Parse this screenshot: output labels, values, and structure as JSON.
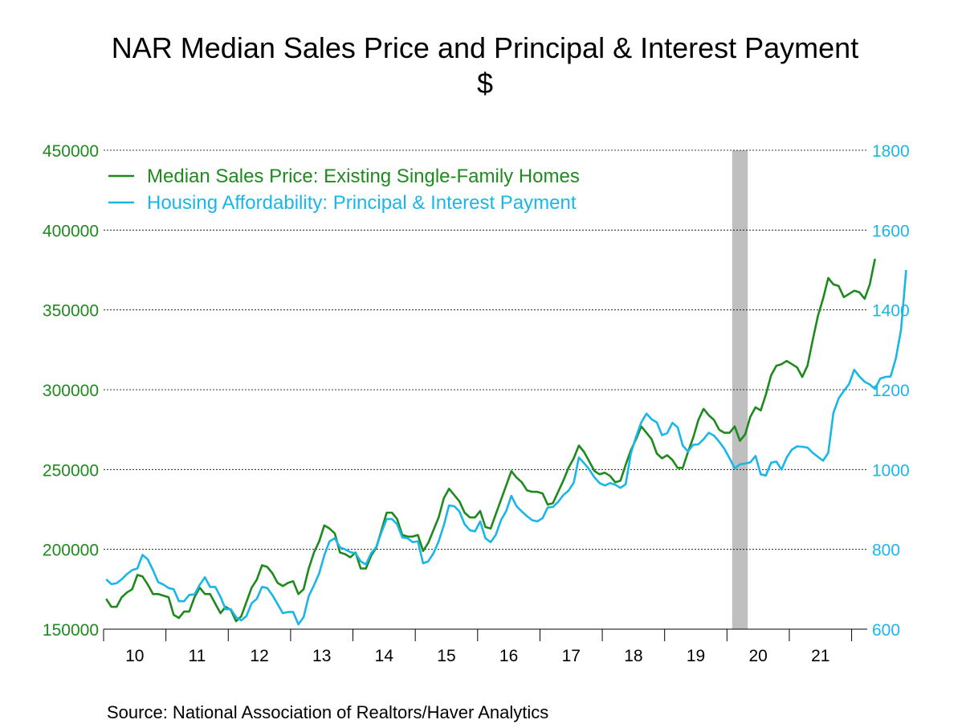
{
  "chart_data": {
    "type": "line",
    "title": "NAR Median Sales Price and Principal & Interest Payment",
    "subtitle": "$",
    "source": "Source:  National Association of Realtors/Haver Analytics",
    "x_tick_labels": [
      "10",
      "11",
      "12",
      "13",
      "14",
      "15",
      "16",
      "17",
      "18",
      "19",
      "20",
      "21"
    ],
    "x_range": [
      "2010-01",
      "2022-03"
    ],
    "y_left": {
      "range": [
        150000,
        450000
      ],
      "ticks": [
        "150000",
        "200000",
        "250000",
        "300000",
        "350000",
        "400000",
        "450000"
      ],
      "color": "#1e8a1e"
    },
    "y_right": {
      "range": [
        600,
        1800
      ],
      "ticks": [
        "600",
        "800",
        "1000",
        "1200",
        "1400",
        "1600",
        "1800"
      ],
      "color": "#1ab6e8"
    },
    "grid": true,
    "recession_shading": {
      "start": "2020-02",
      "end": "2020-04",
      "color": "#bfbfbf"
    },
    "legend_placement": "top-left",
    "series": [
      {
        "name": "Median Sales Price: Existing Single-Family Homes",
        "axis": "left",
        "color": "#1e8a1e",
        "start": "2010-01",
        "values": [
          169000,
          164000,
          164000,
          170000,
          173000,
          175000,
          184000,
          183000,
          178000,
          172000,
          172000,
          171000,
          170000,
          159000,
          157000,
          161000,
          161000,
          170000,
          176000,
          172000,
          172000,
          166000,
          160000,
          164000,
          162000,
          155000,
          158000,
          167000,
          176000,
          181000,
          190000,
          189000,
          185000,
          179000,
          177000,
          179000,
          180000,
          172000,
          175000,
          188000,
          198000,
          205000,
          215000,
          213000,
          210000,
          198000,
          197000,
          195000,
          198000,
          188000,
          188000,
          196000,
          201000,
          212000,
          223000,
          223000,
          219000,
          209000,
          208000,
          208000,
          209000,
          199000,
          204000,
          212000,
          220000,
          232000,
          238000,
          234000,
          230000,
          223000,
          220000,
          220000,
          224000,
          214000,
          213000,
          222000,
          231000,
          240000,
          249000,
          245000,
          242000,
          237000,
          236000,
          236000,
          235000,
          228000,
          229000,
          236000,
          243000,
          251000,
          257000,
          265000,
          261000,
          255000,
          249000,
          247000,
          248000,
          246000,
          242000,
          243000,
          253000,
          262000,
          269000,
          277000,
          273000,
          269000,
          260000,
          257000,
          259000,
          256000,
          251000,
          251000,
          261000,
          270000,
          281000,
          288000,
          284000,
          281000,
          275000,
          273000,
          273000,
          277000,
          268000,
          272000,
          283000,
          289000,
          287000,
          297000,
          309000,
          315000,
          316000,
          318000,
          316000,
          314000,
          308000,
          315000,
          331000,
          346000,
          357000,
          370000,
          366000,
          365000,
          358000,
          360000,
          362000,
          361000,
          357000,
          366000,
          382000
        ]
      },
      {
        "name": "Housing Affordability: Principal & Interest Payment",
        "axis": "right",
        "color": "#1ab6e8",
        "start": "2010-01",
        "values": [
          725,
          713,
          715,
          725,
          738,
          748,
          752,
          786,
          775,
          748,
          718,
          712,
          703,
          700,
          670,
          670,
          686,
          687,
          711,
          730,
          706,
          706,
          681,
          650,
          650,
          630,
          622,
          633,
          665,
          676,
          706,
          703,
          685,
          663,
          640,
          643,
          643,
          612,
          630,
          683,
          710,
          740,
          785,
          820,
          828,
          805,
          800,
          793,
          790,
          770,
          762,
          790,
          806,
          843,
          876,
          876,
          863,
          830,
          828,
          818,
          820,
          765,
          770,
          790,
          820,
          860,
          910,
          908,
          895,
          863,
          848,
          845,
          870,
          828,
          818,
          836,
          873,
          896,
          934,
          908,
          895,
          883,
          873,
          870,
          878,
          905,
          906,
          919,
          936,
          947,
          967,
          1030,
          1016,
          1000,
          980,
          966,
          960,
          966,
          962,
          954,
          963,
          1040,
          1082,
          1118,
          1140,
          1126,
          1118,
          1086,
          1091,
          1117,
          1106,
          1060,
          1045,
          1062,
          1063,
          1076,
          1092,
          1085,
          1070,
          1052,
          1028,
          1003,
          1013,
          1015,
          1018,
          1034,
          988,
          985,
          1017,
          1020,
          1000,
          1030,
          1050,
          1058,
          1057,
          1055,
          1042,
          1032,
          1022,
          1042,
          1142,
          1178,
          1197,
          1214,
          1250,
          1233,
          1220,
          1213,
          1202,
          1228,
          1232,
          1233,
          1278,
          1350,
          1500
        ]
      }
    ]
  }
}
